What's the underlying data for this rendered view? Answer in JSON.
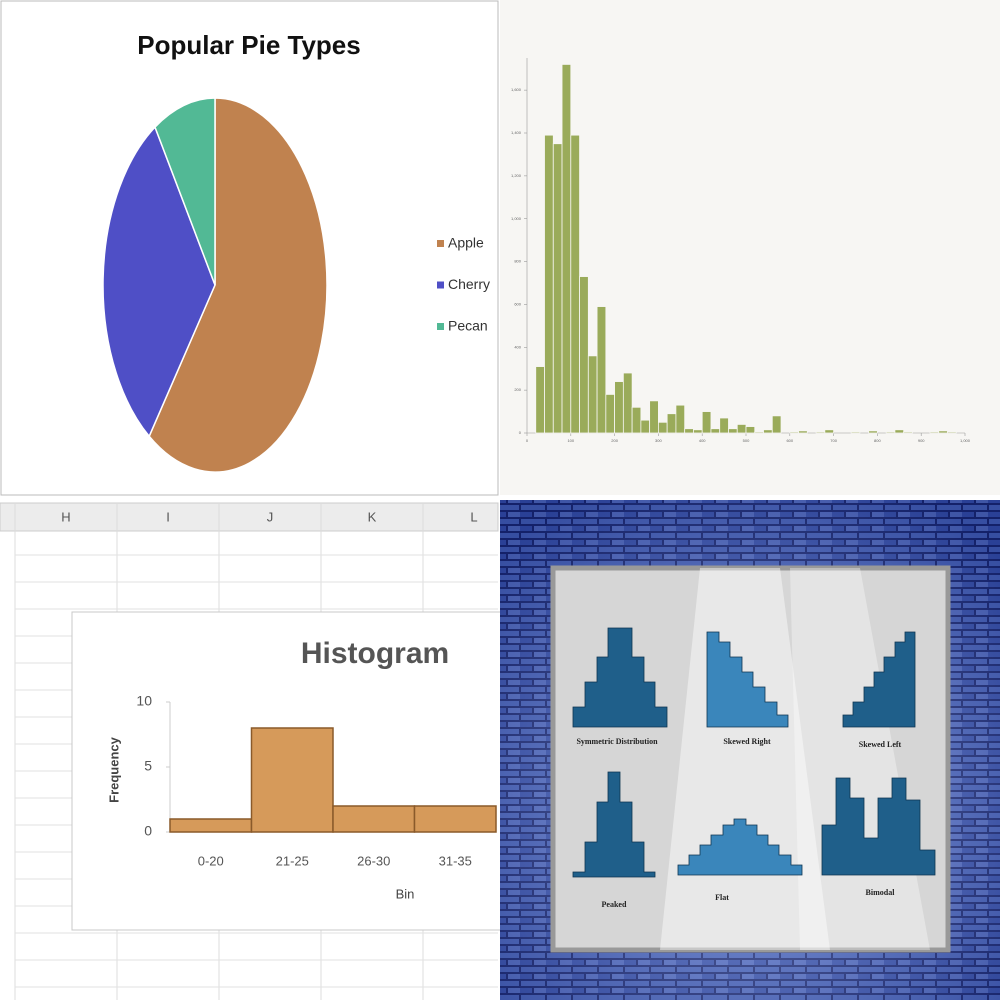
{
  "chart_data": [
    {
      "type": "pie",
      "title": "Popular Pie Types",
      "categories": [
        "Apple",
        "Cherry",
        "Pecan"
      ],
      "values": [
        60,
        31,
        9
      ],
      "colors": [
        "#c0824f",
        "#4f4fc6",
        "#52b995"
      ],
      "legend": "right"
    },
    {
      "type": "histogram",
      "bins": [
        20,
        40,
        60,
        80,
        100,
        120,
        140,
        160,
        180,
        200,
        220,
        240,
        260,
        280,
        300,
        320,
        340,
        360,
        380,
        400,
        420,
        440,
        460,
        480,
        500,
        520,
        540,
        560,
        580,
        600,
        620,
        640,
        660,
        680,
        700,
        720,
        740,
        760,
        780,
        800,
        820,
        840,
        860,
        880,
        900,
        920,
        940,
        960,
        980,
        1000
      ],
      "counts": [
        310,
        1390,
        1350,
        1720,
        1390,
        730,
        360,
        590,
        180,
        240,
        280,
        120,
        60,
        150,
        50,
        90,
        130,
        20,
        15,
        100,
        20,
        70,
        20,
        40,
        30,
        5,
        15,
        80,
        0,
        5,
        10,
        0,
        5,
        15,
        0,
        0,
        5,
        0,
        10,
        0,
        5,
        15,
        5,
        0,
        0,
        5,
        10,
        5,
        0
      ],
      "color": "#9aab5a",
      "xlim": [
        0,
        1000
      ],
      "ylim": [
        0,
        1750
      ],
      "xticks": [
        0,
        100,
        200,
        300,
        400,
        500,
        600,
        700,
        800,
        900,
        {
          "value": 1000,
          "label": "1,000"
        }
      ],
      "yticks": [
        0,
        200,
        400,
        600,
        800,
        {
          "value": 1000,
          "label": "1,000"
        },
        {
          "value": 1200,
          "label": "1,200"
        },
        {
          "value": 1400,
          "label": "1,400"
        },
        {
          "value": 1600,
          "label": "1,600"
        }
      ]
    },
    {
      "type": "bar",
      "title": "Histogram",
      "xlabel": "Bin",
      "ylabel": "Frequency",
      "categories": [
        "0-20",
        "21-25",
        "26-30",
        "31-35"
      ],
      "values": [
        1,
        8,
        2,
        2
      ],
      "color": "#d69a5a",
      "ylim": [
        0,
        10
      ],
      "yticks": [
        0,
        5,
        10
      ]
    }
  ],
  "spreadsheet": {
    "columns": [
      "H",
      "I",
      "J",
      "K",
      "L"
    ]
  },
  "illustration": {
    "labels": [
      "Symmetric Distribution",
      "Skewed Right",
      "Skewed Left",
      "Peaked",
      "Flat",
      "Bimodal"
    ]
  }
}
